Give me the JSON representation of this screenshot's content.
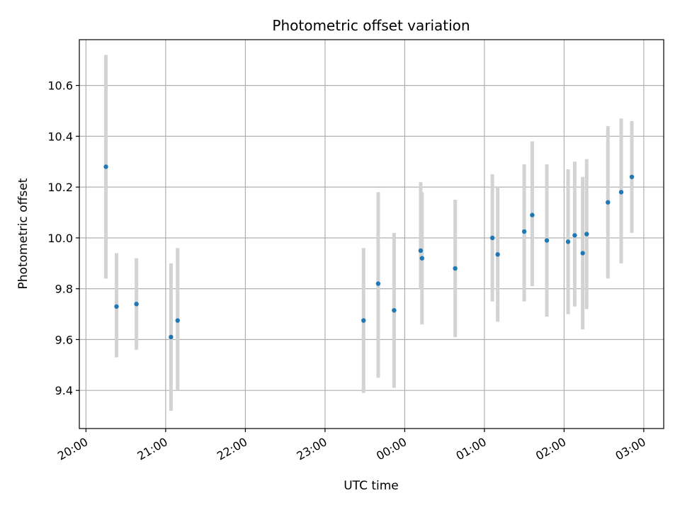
{
  "chart_data": {
    "type": "scatter",
    "title": "Photometric offset variation",
    "xlabel": "UTC time",
    "ylabel": "Photometric offset",
    "x_axis": "time",
    "xlim": [
      "19:55",
      "27:15"
    ],
    "ylim": [
      9.25,
      10.78
    ],
    "grid": true,
    "x_ticks": [
      {
        "t": "20:00",
        "label": "20:00"
      },
      {
        "t": "21:00",
        "label": "21:00"
      },
      {
        "t": "22:00",
        "label": "22:00"
      },
      {
        "t": "23:00",
        "label": "23:00"
      },
      {
        "t": "24:00",
        "label": "00:00"
      },
      {
        "t": "25:00",
        "label": "01:00"
      },
      {
        "t": "26:00",
        "label": "02:00"
      },
      {
        "t": "27:00",
        "label": "03:00"
      }
    ],
    "y_ticks": [
      9.4,
      9.6,
      9.8,
      10.0,
      10.2,
      10.4,
      10.6
    ],
    "colors": {
      "point": "#1f77b4",
      "errorbar": "#d3d3d3",
      "grid": "#b0b0b0"
    },
    "points": [
      {
        "t": "20:15",
        "y": 10.28,
        "lo": 9.84,
        "hi": 10.72
      },
      {
        "t": "20:23",
        "y": 9.73,
        "lo": 9.53,
        "hi": 9.94
      },
      {
        "t": "20:38",
        "y": 9.74,
        "lo": 9.56,
        "hi": 9.92
      },
      {
        "t": "21:04",
        "y": 9.61,
        "lo": 9.32,
        "hi": 9.9
      },
      {
        "t": "21:09",
        "y": 9.675,
        "lo": 9.4,
        "hi": 9.96
      },
      {
        "t": "23:29",
        "y": 9.675,
        "lo": 9.39,
        "hi": 9.96
      },
      {
        "t": "23:40",
        "y": 9.82,
        "lo": 9.45,
        "hi": 10.18
      },
      {
        "t": "23:52",
        "y": 9.715,
        "lo": 9.41,
        "hi": 10.02
      },
      {
        "t": "24:12",
        "y": 9.95,
        "lo": 9.8,
        "hi": 10.22
      },
      {
        "t": "24:13",
        "y": 9.92,
        "lo": 9.66,
        "hi": 10.18
      },
      {
        "t": "24:38",
        "y": 9.88,
        "lo": 9.61,
        "hi": 10.15
      },
      {
        "t": "25:06",
        "y": 10.0,
        "lo": 9.75,
        "hi": 10.25
      },
      {
        "t": "25:10",
        "y": 9.935,
        "lo": 9.67,
        "hi": 10.2
      },
      {
        "t": "25:30",
        "y": 10.025,
        "lo": 9.75,
        "hi": 10.29
      },
      {
        "t": "25:36",
        "y": 10.09,
        "lo": 9.81,
        "hi": 10.38
      },
      {
        "t": "25:47",
        "y": 9.99,
        "lo": 9.69,
        "hi": 10.29
      },
      {
        "t": "26:03",
        "y": 9.985,
        "lo": 9.7,
        "hi": 10.27
      },
      {
        "t": "26:08",
        "y": 10.01,
        "lo": 9.73,
        "hi": 10.3
      },
      {
        "t": "26:14",
        "y": 9.94,
        "lo": 9.64,
        "hi": 10.24
      },
      {
        "t": "26:17",
        "y": 10.015,
        "lo": 9.72,
        "hi": 10.31
      },
      {
        "t": "26:33",
        "y": 10.14,
        "lo": 9.84,
        "hi": 10.44
      },
      {
        "t": "26:43",
        "y": 10.18,
        "lo": 9.9,
        "hi": 10.47
      },
      {
        "t": "26:51",
        "y": 10.24,
        "lo": 10.02,
        "hi": 10.46
      }
    ]
  }
}
